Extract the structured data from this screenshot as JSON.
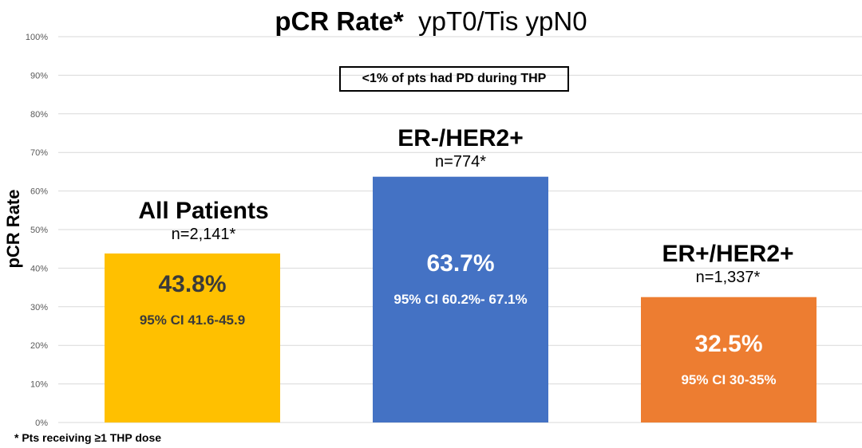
{
  "chart_data": {
    "type": "bar",
    "title": "pCR Rate*",
    "subtitle": "ypT0/Tis ypN0",
    "ylabel": "pCR Rate",
    "xlabel": "",
    "ylim": [
      0,
      100
    ],
    "yticks": [
      "0%",
      "10%",
      "20%",
      "30%",
      "40%",
      "50%",
      "60%",
      "70%",
      "80%",
      "90%",
      "100%"
    ],
    "grid": true,
    "categories": [
      "All Patients",
      "ER-/HER2+",
      "ER+/HER2+"
    ],
    "n_labels": [
      "n=2,141*",
      "n=774*",
      "n=1,337*"
    ],
    "values": [
      43.8,
      63.7,
      32.5
    ],
    "value_labels": [
      "43.8%",
      "63.7%",
      "32.5%"
    ],
    "ci_labels": [
      "95% CI 41.6-45.9",
      "95% CI 60.2%- 67.1%",
      "95% CI 30-35%"
    ],
    "colors": [
      "#FFC000",
      "#4472C4",
      "#ED7D31"
    ],
    "label_colors": [
      "#3a3a3a",
      "#ffffff",
      "#ffffff"
    ],
    "annotation": "<1% of pts had PD during THP",
    "footnote": "* Pts receiving ≥1 THP dose"
  }
}
